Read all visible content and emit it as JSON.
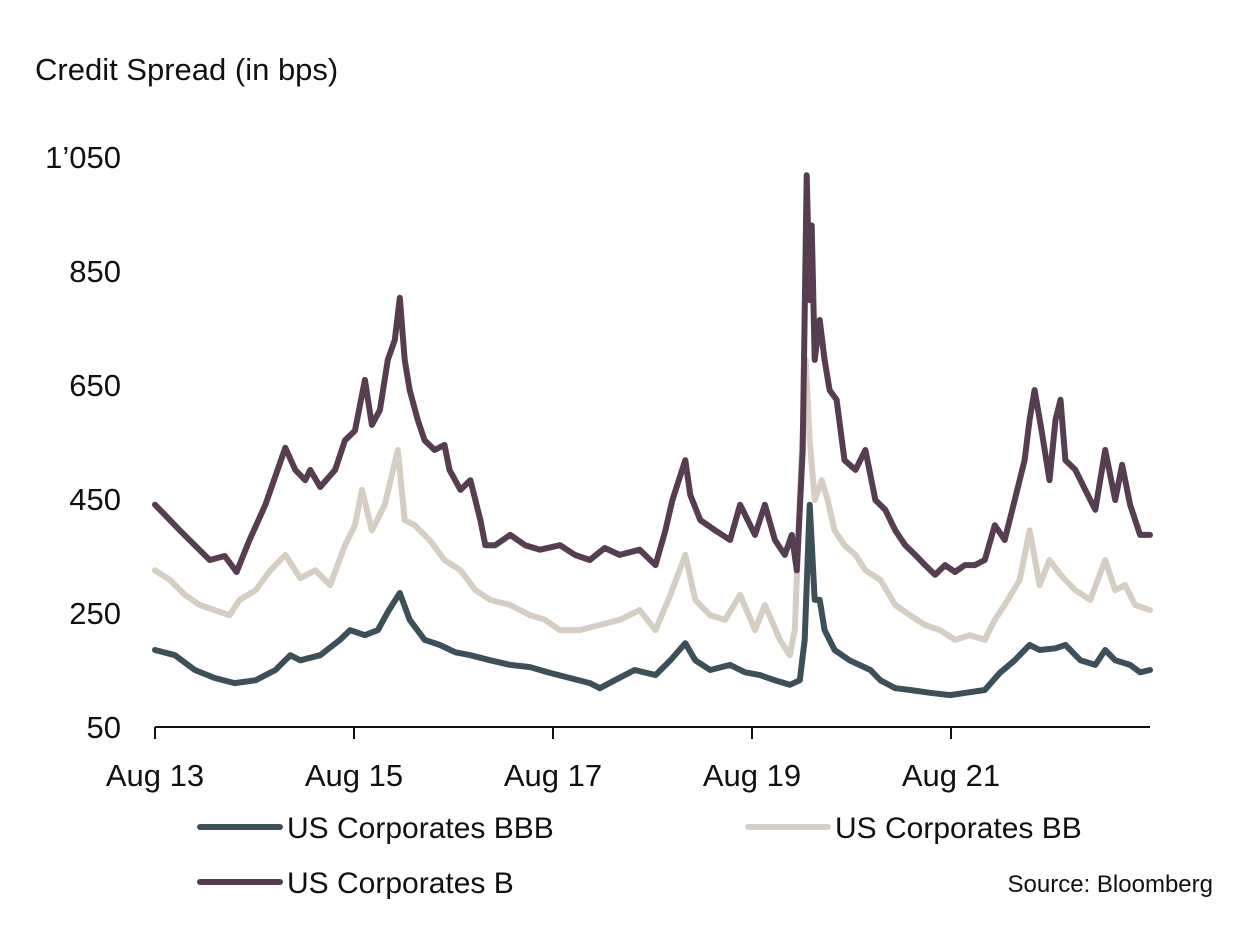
{
  "chart_data": {
    "type": "line",
    "ylabel": "Credit Spread (in bps)",
    "source": "Source: Bloomberg",
    "ylim": [
      50,
      1050
    ],
    "xlim": [
      2013.58,
      2023.58
    ],
    "x_unit": "decimal year",
    "yticks": [
      {
        "value": 50,
        "label": "50"
      },
      {
        "value": 250,
        "label": "250"
      },
      {
        "value": 450,
        "label": "450"
      },
      {
        "value": 650,
        "label": "650"
      },
      {
        "value": 850,
        "label": "850"
      },
      {
        "value": 1050,
        "label": "1’050"
      }
    ],
    "xticks": [
      {
        "value": 2013.58,
        "label": "Aug 13"
      },
      {
        "value": 2015.58,
        "label": "Aug 15"
      },
      {
        "value": 2017.58,
        "label": "Aug 17"
      },
      {
        "value": 2019.58,
        "label": "Aug 19"
      },
      {
        "value": 2021.58,
        "label": "Aug 21"
      }
    ],
    "grid": false,
    "legend_position": "bottom",
    "series": [
      {
        "name": "US Corporates BBB",
        "color": "#3d4f58",
        "points": [
          [
            2013.58,
            185
          ],
          [
            2013.78,
            176
          ],
          [
            2013.98,
            150
          ],
          [
            2014.18,
            136
          ],
          [
            2014.38,
            127
          ],
          [
            2014.59,
            132
          ],
          [
            2014.79,
            150
          ],
          [
            2014.94,
            176
          ],
          [
            2015.04,
            167
          ],
          [
            2015.24,
            176
          ],
          [
            2015.44,
            203
          ],
          [
            2015.54,
            220
          ],
          [
            2015.69,
            211
          ],
          [
            2015.82,
            220
          ],
          [
            2015.92,
            252
          ],
          [
            2016.04,
            285
          ],
          [
            2016.14,
            238
          ],
          [
            2016.29,
            203
          ],
          [
            2016.44,
            194
          ],
          [
            2016.6,
            181
          ],
          [
            2016.75,
            176
          ],
          [
            2016.95,
            167
          ],
          [
            2017.15,
            159
          ],
          [
            2017.35,
            155
          ],
          [
            2017.55,
            145
          ],
          [
            2017.75,
            136
          ],
          [
            2017.95,
            127
          ],
          [
            2018.05,
            118
          ],
          [
            2018.2,
            132
          ],
          [
            2018.4,
            150
          ],
          [
            2018.61,
            141
          ],
          [
            2018.76,
            167
          ],
          [
            2018.91,
            197
          ],
          [
            2019.01,
            167
          ],
          [
            2019.16,
            150
          ],
          [
            2019.36,
            159
          ],
          [
            2019.51,
            146
          ],
          [
            2019.66,
            141
          ],
          [
            2019.81,
            132
          ],
          [
            2019.96,
            124
          ],
          [
            2020.06,
            132
          ],
          [
            2020.11,
            203
          ],
          [
            2020.16,
            440
          ],
          [
            2020.21,
            273
          ],
          [
            2020.26,
            273
          ],
          [
            2020.31,
            220
          ],
          [
            2020.41,
            185
          ],
          [
            2020.56,
            167
          ],
          [
            2020.77,
            150
          ],
          [
            2020.87,
            132
          ],
          [
            2021.02,
            118
          ],
          [
            2021.17,
            115
          ],
          [
            2021.37,
            110
          ],
          [
            2021.57,
            106
          ],
          [
            2021.77,
            111
          ],
          [
            2021.92,
            115
          ],
          [
            2022.07,
            145
          ],
          [
            2022.22,
            167
          ],
          [
            2022.37,
            194
          ],
          [
            2022.47,
            185
          ],
          [
            2022.63,
            188
          ],
          [
            2022.73,
            194
          ],
          [
            2022.88,
            167
          ],
          [
            2023.03,
            159
          ],
          [
            2023.13,
            185
          ],
          [
            2023.23,
            167
          ],
          [
            2023.38,
            159
          ],
          [
            2023.48,
            146
          ],
          [
            2023.58,
            150
          ]
        ]
      },
      {
        "name": "US Corporates BB",
        "color": "#d6cec3",
        "points": [
          [
            2013.58,
            325
          ],
          [
            2013.73,
            308
          ],
          [
            2013.88,
            282
          ],
          [
            2014.03,
            264
          ],
          [
            2014.18,
            255
          ],
          [
            2014.33,
            246
          ],
          [
            2014.43,
            273
          ],
          [
            2014.59,
            290
          ],
          [
            2014.74,
            325
          ],
          [
            2014.89,
            352
          ],
          [
            2015.04,
            311
          ],
          [
            2015.19,
            325
          ],
          [
            2015.34,
            299
          ],
          [
            2015.49,
            369
          ],
          [
            2015.59,
            404
          ],
          [
            2015.66,
            466
          ],
          [
            2015.76,
            395
          ],
          [
            2015.89,
            440
          ],
          [
            2016.02,
            536
          ],
          [
            2016.09,
            413
          ],
          [
            2016.19,
            404
          ],
          [
            2016.34,
            378
          ],
          [
            2016.49,
            343
          ],
          [
            2016.65,
            325
          ],
          [
            2016.8,
            290
          ],
          [
            2016.95,
            273
          ],
          [
            2017.15,
            264
          ],
          [
            2017.35,
            246
          ],
          [
            2017.5,
            238
          ],
          [
            2017.65,
            220
          ],
          [
            2017.85,
            220
          ],
          [
            2018.05,
            229
          ],
          [
            2018.25,
            238
          ],
          [
            2018.45,
            255
          ],
          [
            2018.61,
            220
          ],
          [
            2018.76,
            282
          ],
          [
            2018.91,
            352
          ],
          [
            2019.01,
            273
          ],
          [
            2019.16,
            246
          ],
          [
            2019.31,
            238
          ],
          [
            2019.46,
            282
          ],
          [
            2019.61,
            220
          ],
          [
            2019.71,
            264
          ],
          [
            2019.86,
            203
          ],
          [
            2019.96,
            176
          ],
          [
            2020.01,
            220
          ],
          [
            2020.06,
            448
          ],
          [
            2020.12,
            694
          ],
          [
            2020.16,
            553
          ],
          [
            2020.21,
            448
          ],
          [
            2020.28,
            483
          ],
          [
            2020.34,
            448
          ],
          [
            2020.41,
            395
          ],
          [
            2020.51,
            369
          ],
          [
            2020.62,
            352
          ],
          [
            2020.72,
            325
          ],
          [
            2020.87,
            308
          ],
          [
            2021.02,
            264
          ],
          [
            2021.17,
            246
          ],
          [
            2021.32,
            229
          ],
          [
            2021.47,
            220
          ],
          [
            2021.62,
            203
          ],
          [
            2021.77,
            211
          ],
          [
            2021.92,
            203
          ],
          [
            2022.02,
            238
          ],
          [
            2022.12,
            264
          ],
          [
            2022.27,
            308
          ],
          [
            2022.37,
            395
          ],
          [
            2022.47,
            299
          ],
          [
            2022.57,
            343
          ],
          [
            2022.68,
            317
          ],
          [
            2022.83,
            290
          ],
          [
            2022.98,
            273
          ],
          [
            2023.13,
            343
          ],
          [
            2023.23,
            290
          ],
          [
            2023.33,
            299
          ],
          [
            2023.43,
            264
          ],
          [
            2023.58,
            255
          ]
        ]
      },
      {
        "name": "US Corporates B",
        "color": "#563d52",
        "points": [
          [
            2013.58,
            440
          ],
          [
            2013.68,
            422
          ],
          [
            2013.83,
            395
          ],
          [
            2013.98,
            369
          ],
          [
            2014.13,
            343
          ],
          [
            2014.28,
            350
          ],
          [
            2014.4,
            322
          ],
          [
            2014.53,
            378
          ],
          [
            2014.69,
            440
          ],
          [
            2014.89,
            540
          ],
          [
            2014.99,
            501
          ],
          [
            2015.09,
            483
          ],
          [
            2015.14,
            501
          ],
          [
            2015.24,
            471
          ],
          [
            2015.39,
            501
          ],
          [
            2015.49,
            553
          ],
          [
            2015.59,
            570
          ],
          [
            2015.69,
            659
          ],
          [
            2015.76,
            580
          ],
          [
            2015.84,
            606
          ],
          [
            2015.92,
            694
          ],
          [
            2015.99,
            729
          ],
          [
            2016.04,
            803
          ],
          [
            2016.09,
            694
          ],
          [
            2016.14,
            641
          ],
          [
            2016.22,
            589
          ],
          [
            2016.29,
            553
          ],
          [
            2016.39,
            536
          ],
          [
            2016.49,
            545
          ],
          [
            2016.54,
            501
          ],
          [
            2016.65,
            466
          ],
          [
            2016.75,
            483
          ],
          [
            2016.85,
            413
          ],
          [
            2016.9,
            369
          ],
          [
            2017.0,
            369
          ],
          [
            2017.15,
            387
          ],
          [
            2017.3,
            369
          ],
          [
            2017.45,
            361
          ],
          [
            2017.65,
            369
          ],
          [
            2017.8,
            352
          ],
          [
            2017.95,
            343
          ],
          [
            2018.1,
            364
          ],
          [
            2018.25,
            352
          ],
          [
            2018.45,
            361
          ],
          [
            2018.61,
            334
          ],
          [
            2018.71,
            395
          ],
          [
            2018.78,
            448
          ],
          [
            2018.91,
            518
          ],
          [
            2018.96,
            457
          ],
          [
            2019.06,
            413
          ],
          [
            2019.21,
            395
          ],
          [
            2019.36,
            378
          ],
          [
            2019.46,
            440
          ],
          [
            2019.61,
            387
          ],
          [
            2019.71,
            440
          ],
          [
            2019.81,
            378
          ],
          [
            2019.91,
            352
          ],
          [
            2019.98,
            387
          ],
          [
            2020.03,
            325
          ],
          [
            2020.09,
            536
          ],
          [
            2020.13,
            1018
          ],
          [
            2020.16,
            799
          ],
          [
            2020.18,
            930
          ],
          [
            2020.21,
            694
          ],
          [
            2020.26,
            764
          ],
          [
            2020.31,
            694
          ],
          [
            2020.36,
            641
          ],
          [
            2020.43,
            624
          ],
          [
            2020.51,
            518
          ],
          [
            2020.62,
            501
          ],
          [
            2020.72,
            536
          ],
          [
            2020.82,
            448
          ],
          [
            2020.92,
            431
          ],
          [
            2021.02,
            395
          ],
          [
            2021.12,
            369
          ],
          [
            2021.22,
            352
          ],
          [
            2021.32,
            334
          ],
          [
            2021.42,
            317
          ],
          [
            2021.52,
            334
          ],
          [
            2021.62,
            322
          ],
          [
            2021.72,
            334
          ],
          [
            2021.82,
            334
          ],
          [
            2021.92,
            343
          ],
          [
            2022.02,
            404
          ],
          [
            2022.12,
            378
          ],
          [
            2022.22,
            448
          ],
          [
            2022.32,
            518
          ],
          [
            2022.37,
            589
          ],
          [
            2022.42,
            641
          ],
          [
            2022.49,
            571
          ],
          [
            2022.57,
            483
          ],
          [
            2022.63,
            589
          ],
          [
            2022.68,
            624
          ],
          [
            2022.73,
            518
          ],
          [
            2022.83,
            501
          ],
          [
            2022.93,
            466
          ],
          [
            2023.03,
            431
          ],
          [
            2023.13,
            536
          ],
          [
            2023.23,
            448
          ],
          [
            2023.3,
            510
          ],
          [
            2023.38,
            440
          ],
          [
            2023.48,
            387
          ],
          [
            2023.58,
            387
          ]
        ]
      }
    ]
  }
}
